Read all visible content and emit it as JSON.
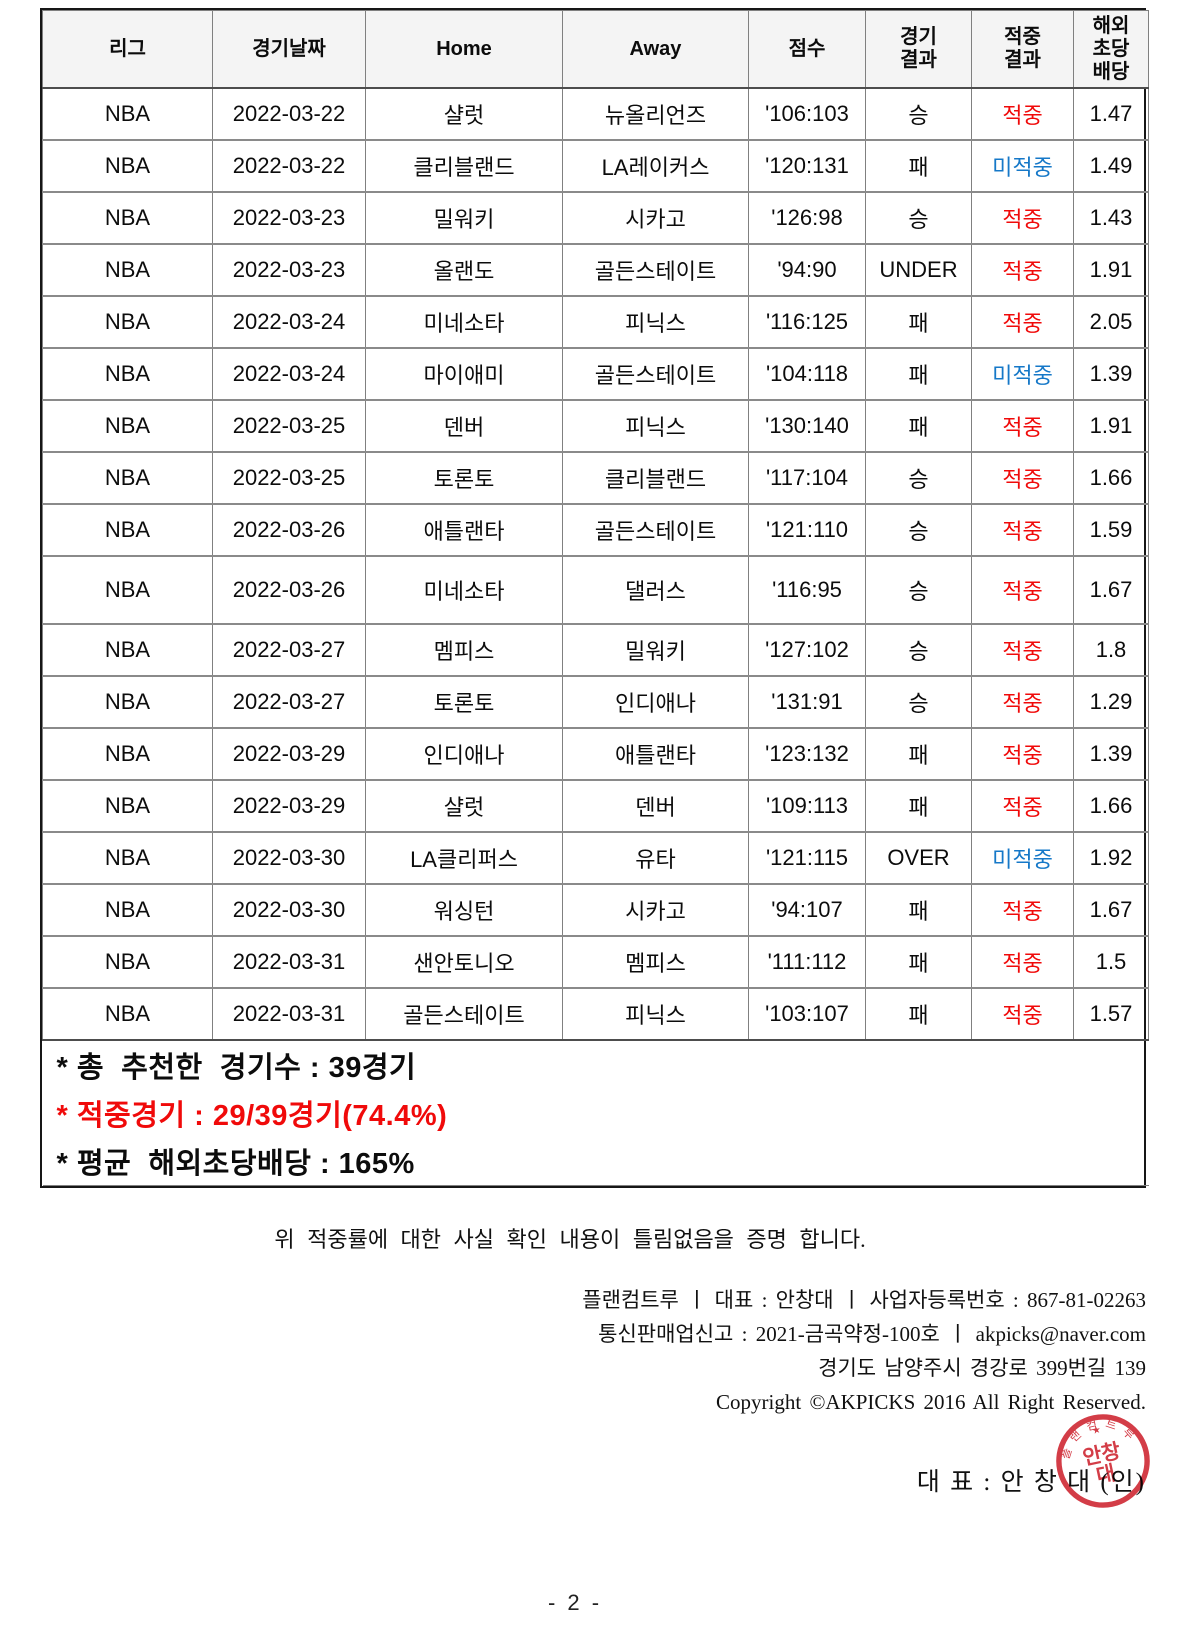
{
  "colors": {
    "hit": "#f00a0a",
    "miss": "#1678c8",
    "header_bg": "#f4f4f4",
    "stamp": "#cf2733"
  },
  "table": {
    "headers": [
      {
        "label": "리그"
      },
      {
        "label": "경기날짜"
      },
      {
        "label": "Home"
      },
      {
        "label": "Away"
      },
      {
        "label": "점수"
      },
      {
        "label": "경기\n결과"
      },
      {
        "label": "적중\n결과"
      },
      {
        "label": "해외\n초당\n배당"
      }
    ],
    "rows": [
      {
        "league": "NBA",
        "date": "2022-03-22",
        "home": "샬럿",
        "away": "뉴올리언즈",
        "score": "'106:103",
        "result": "승",
        "hit": "적중",
        "odds": "1.47"
      },
      {
        "league": "NBA",
        "date": "2022-03-22",
        "home": "클리블랜드",
        "away": "LA레이커스",
        "score": "'120:131",
        "result": "패",
        "hit": "미적중",
        "odds": "1.49"
      },
      {
        "league": "NBA",
        "date": "2022-03-23",
        "home": "밀워키",
        "away": "시카고",
        "score": "'126:98",
        "result": "승",
        "hit": "적중",
        "odds": "1.43"
      },
      {
        "league": "NBA",
        "date": "2022-03-23",
        "home": "올랜도",
        "away": "골든스테이트",
        "score": "'94:90",
        "result": "UNDER",
        "hit": "적중",
        "odds": "1.91"
      },
      {
        "league": "NBA",
        "date": "2022-03-24",
        "home": "미네소타",
        "away": "피닉스",
        "score": "'116:125",
        "result": "패",
        "hit": "적중",
        "odds": "2.05"
      },
      {
        "league": "NBA",
        "date": "2022-03-24",
        "home": "마이애미",
        "away": "골든스테이트",
        "score": "'104:118",
        "result": "패",
        "hit": "미적중",
        "odds": "1.39"
      },
      {
        "league": "NBA",
        "date": "2022-03-25",
        "home": "덴버",
        "away": "피닉스",
        "score": "'130:140",
        "result": "패",
        "hit": "적중",
        "odds": "1.91"
      },
      {
        "league": "NBA",
        "date": "2022-03-25",
        "home": "토론토",
        "away": "클리블랜드",
        "score": "'117:104",
        "result": "승",
        "hit": "적중",
        "odds": "1.66"
      },
      {
        "league": "NBA",
        "date": "2022-03-26",
        "home": "애틀랜타",
        "away": "골든스테이트",
        "score": "'121:110",
        "result": "승",
        "hit": "적중",
        "odds": "1.59"
      },
      {
        "league": "NBA",
        "date": "2022-03-26",
        "home": "미네소타",
        "away": "댈러스",
        "score": "'116:95",
        "result": "승",
        "hit": "적중",
        "odds": "1.67",
        "tall": true
      },
      {
        "league": "NBA",
        "date": "2022-03-27",
        "home": "멤피스",
        "away": "밀워키",
        "score": "'127:102",
        "result": "승",
        "hit": "적중",
        "odds": "1.8"
      },
      {
        "league": "NBA",
        "date": "2022-03-27",
        "home": "토론토",
        "away": "인디애나",
        "score": "'131:91",
        "result": "승",
        "hit": "적중",
        "odds": "1.29"
      },
      {
        "league": "NBA",
        "date": "2022-03-29",
        "home": "인디애나",
        "away": "애틀랜타",
        "score": "'123:132",
        "result": "패",
        "hit": "적중",
        "odds": "1.39"
      },
      {
        "league": "NBA",
        "date": "2022-03-29",
        "home": "샬럿",
        "away": "덴버",
        "score": "'109:113",
        "result": "패",
        "hit": "적중",
        "odds": "1.66"
      },
      {
        "league": "NBA",
        "date": "2022-03-30",
        "home": "LA클리퍼스",
        "away": "유타",
        "score": "'121:115",
        "result": "OVER",
        "hit": "미적중",
        "odds": "1.92"
      },
      {
        "league": "NBA",
        "date": "2022-03-30",
        "home": "워싱턴",
        "away": "시카고",
        "score": "'94:107",
        "result": "패",
        "hit": "적중",
        "odds": "1.67"
      },
      {
        "league": "NBA",
        "date": "2022-03-31",
        "home": "샌안토니오",
        "away": "멤피스",
        "score": "'111:112",
        "result": "패",
        "hit": "적중",
        "odds": "1.5"
      },
      {
        "league": "NBA",
        "date": "2022-03-31",
        "home": "골든스테이트",
        "away": "피닉스",
        "score": "'103:107",
        "result": "패",
        "hit": "적중",
        "odds": "1.57"
      }
    ],
    "summary_lines": [
      {
        "text": "* 총  추천한  경기수 : 39경기",
        "emphasis": "normal"
      },
      {
        "text": "* 적중경기 : 29/39경기(74.4%)",
        "emphasis": "red"
      },
      {
        "text": "* 평균  해외초당배당 : 165%",
        "emphasis": "normal"
      }
    ]
  },
  "certification_text": "위 적중률에 대한 사실 확인 내용이 틀림없음을 증명 합니다.",
  "company_info": {
    "line1": "플랜컴트루 ㅣ 대표 : 안창대 ㅣ 사업자등록번호 : 867-81-02263",
    "line2": "통신판매업신고 : 2021-금곡약정-100호 ㅣ akpicks@naver.com",
    "line3": "경기도 남양주시 경강로 399번길 139",
    "line4": "Copyright ©AKPICKS 2016 All Right Reserved."
  },
  "signature_text": "대 표 : 안 창 대 (인)",
  "stamp": {
    "ring_text": "플랜컴트루",
    "star": "★",
    "center_line1": "안창",
    "center_line2": "대"
  },
  "page_number": "- 2 -"
}
